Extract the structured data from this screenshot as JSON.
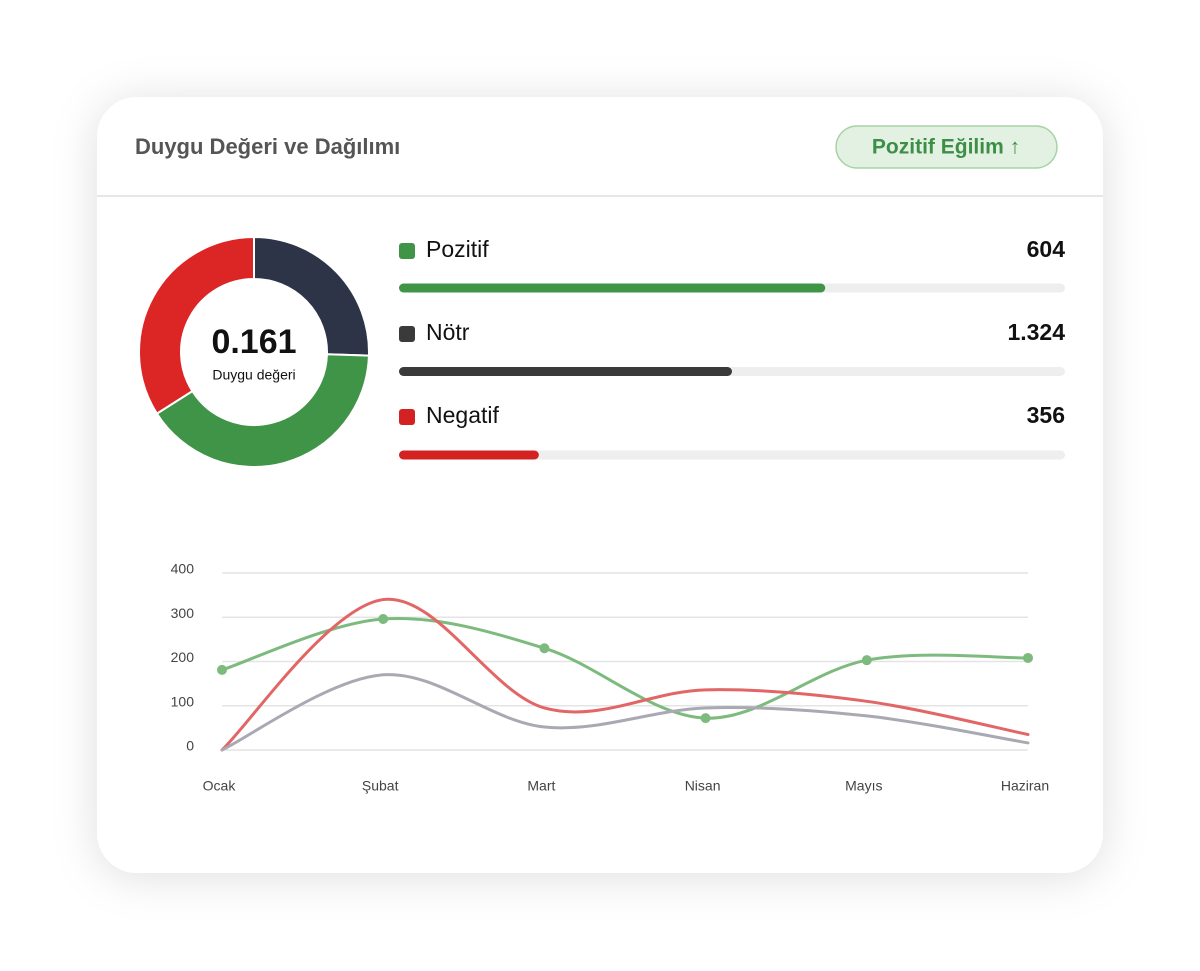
{
  "header": {
    "title": "Duygu Değeri ve Dağılımı",
    "badge": "Pozitif Eğilim ↑"
  },
  "chart_data": [
    {
      "type": "donut",
      "values": [
        25.5,
        40.5,
        34
      ],
      "colors": [
        "#2e3447",
        "#3f9447",
        "#dc2626"
      ],
      "center_value": 0.161,
      "center_label": "Duygu değeri"
    },
    {
      "type": "progress",
      "categories": [
        "Pozitif",
        "Nötr",
        "Negatif"
      ],
      "colors": [
        "#3f9447",
        "#3a3a3a",
        "#d42222"
      ],
      "values": [
        604,
        1324,
        356
      ],
      "value_labels": [
        "604",
        "1.324",
        "356"
      ],
      "fill": [
        64,
        50,
        21
      ],
      "xlim": [
        0,
        100
      ]
    },
    {
      "type": "line",
      "categories": [
        "Ocak",
        "Şubat",
        "Mart",
        "Nisan",
        "Mayıs",
        "Haziran"
      ],
      "series": [
        {
          "color": "#7dba7d",
          "values": [
            181,
            296,
            230,
            72,
            203,
            208
          ],
          "markers": true
        },
        {
          "color": "#e26666",
          "values": [
            0,
            340,
            95,
            136,
            110,
            35
          ],
          "markers": false
        },
        {
          "color": "#a9a9b4",
          "values": [
            0,
            170,
            52,
            95,
            77,
            16
          ],
          "markers": false
        }
      ],
      "ylim": [
        0,
        400
      ],
      "yticks": [
        0,
        100,
        200,
        300,
        400
      ],
      "grid": true
    }
  ]
}
